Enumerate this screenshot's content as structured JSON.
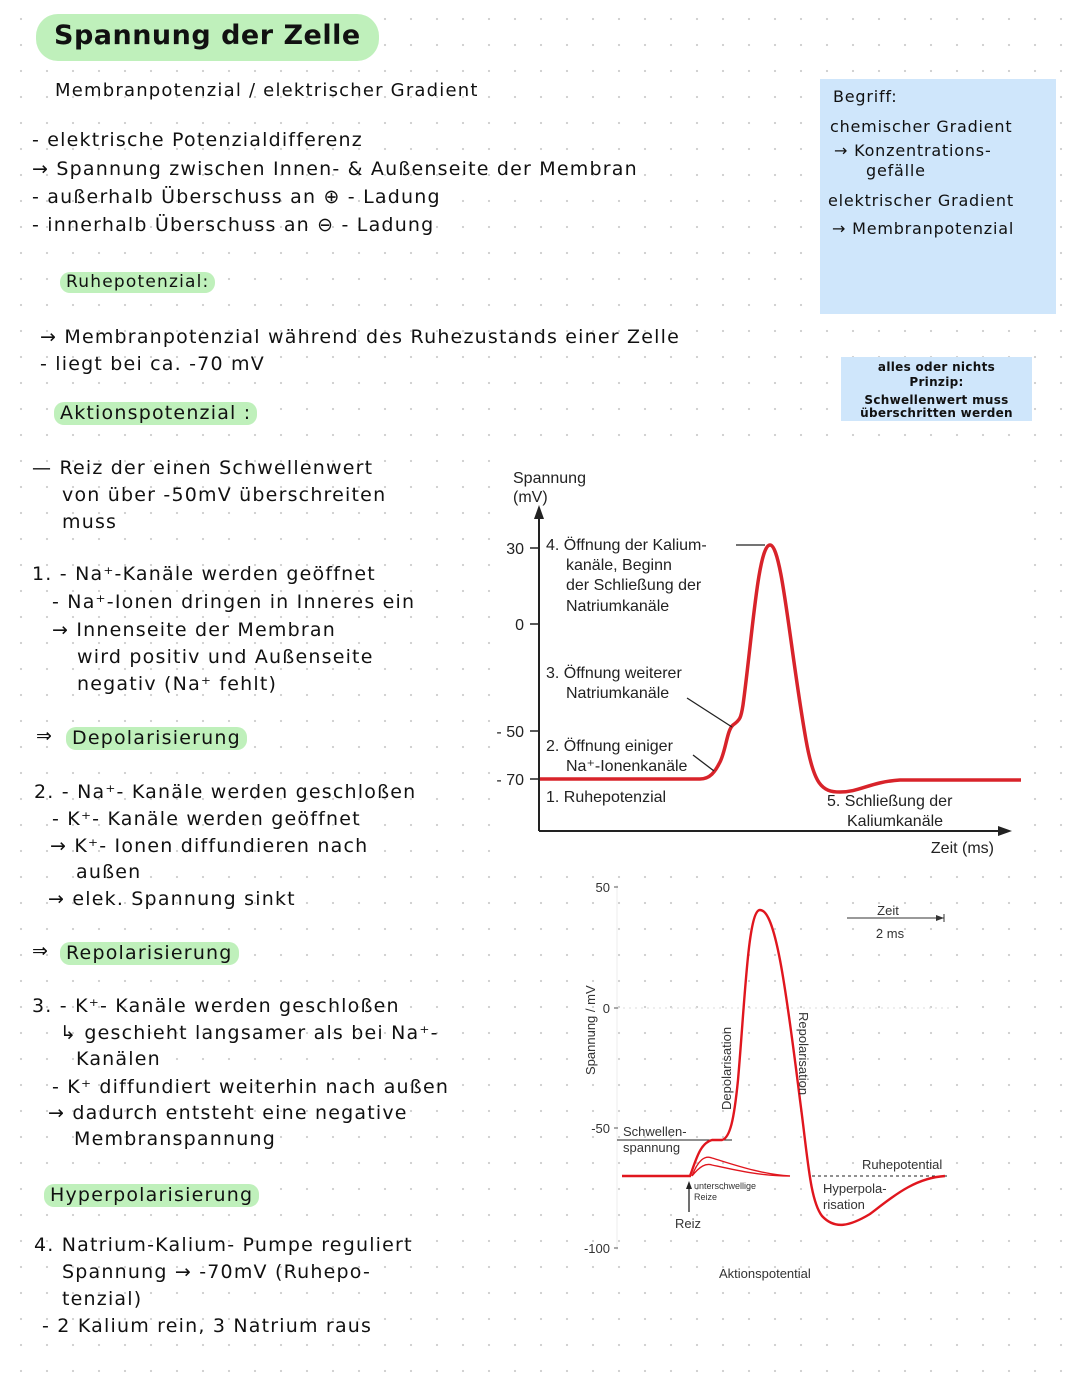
{
  "title": "Spannung der Zelle",
  "intro": {
    "heading": "Membranpotenzial / elektrischer Gradient",
    "lines": [
      "- elektrische Potenzialdifferenz",
      "→ Spannung zwischen Innen- & Außenseite der Membran",
      "- außerhalb Überschuss an ⊕ - Ladung",
      "- innerhalb Überschuss an ⊖ - Ladung"
    ]
  },
  "sidebox": {
    "lines": [
      "Begriff:",
      "chemischer Gradient",
      "→ Konzentrations-",
      "gefälle",
      "elektrischer Gradient",
      "→ Membranpotenzial"
    ]
  },
  "notebox": {
    "lines": [
      "alles oder nichts",
      "Prinzip:",
      "Schwellenwert muss",
      "überschritten werden"
    ]
  },
  "ruhe": {
    "heading": "Ruhepotenzial:",
    "lines": [
      "→ Membranpotenzial während des Ruhezustands einer Zelle",
      "- liegt bei ca. -70 mV"
    ]
  },
  "aktion": {
    "heading": "Aktionspotenzial :",
    "lines": [
      "— Reiz der einen Schwellenwert",
      "von über -50mV überschreiten",
      "muss"
    ]
  },
  "step1": {
    "lines": [
      "1. - Na⁺-Kanäle werden geöffnet",
      "- Na⁺-Ionen dringen in Inneres ein",
      "→ Innenseite der Membran",
      "wird positiv und Außenseite",
      "negativ (Na⁺ fehlt)"
    ],
    "result": "Depolarisierung"
  },
  "step2": {
    "lines": [
      "2. - Na⁺- Kanäle werden geschloßen",
      "- K⁺- Kanäle werden geöffnet",
      "→ K⁺- Ionen diffundieren nach",
      "außen",
      "→ elek. Spannung sinkt"
    ],
    "result": "Repolarisierung"
  },
  "step3": {
    "lines": [
      "3. - K⁺- Kanäle werden geschloßen",
      "↳ geschieht langsamer als bei Na⁺-",
      "Kanälen",
      "- K⁺ diffundiert weiterhin nach außen",
      "→ dadurch entsteht eine negative",
      "Membranspannung"
    ],
    "result": "Hyperpolarisierung"
  },
  "step4": {
    "lines": [
      "4. Natrium-Kalium- Pumpe reguliert",
      "Spannung → -70mV (Ruhepo-",
      "tenzial)",
      "- 2 Kalium rein, 3 Natrium raus"
    ]
  },
  "figure1": {
    "ylabel": [
      "Spannung",
      "(mV)"
    ],
    "xlabel": "Zeit (ms)",
    "yticks": [
      "30",
      "0",
      "- 50",
      "- 70"
    ],
    "annotations": {
      "a1": [
        "1. Ruhepotenzial"
      ],
      "a2": [
        "2. Öffnung einiger",
        "Na⁺-Ionenkanäle"
      ],
      "a3": [
        "3. Öffnung weiterer",
        "Natriumkanäle"
      ],
      "a4": [
        "4. Öffnung der Kalium-",
        "kanäle, Beginn",
        "der Schließung der",
        "Natriumkanäle"
      ],
      "a5": [
        "5. Schließung der",
        "Kaliumkanäle"
      ]
    },
    "curve_color": "#d8232a"
  },
  "figure2": {
    "ylabel": "Spannung / mV",
    "yticks": [
      "50",
      "0",
      "-50",
      "-100"
    ],
    "scale": [
      "Zeit",
      "2 ms"
    ],
    "labels": {
      "threshold": [
        "Schwellen-",
        "spannung"
      ],
      "depol": "Depolarisation",
      "repol": "Repolarisation",
      "rest": "Ruhepotential",
      "hyper": [
        "Hyperpola-",
        "risation"
      ],
      "sub": [
        "unterschwellige",
        "Reize"
      ],
      "stim": "Reiz"
    },
    "caption": "Aktionspotential",
    "curve_color": "#e0161e"
  },
  "colors": {
    "highlight": "#bff0bb",
    "box": "#cfe6fb"
  }
}
